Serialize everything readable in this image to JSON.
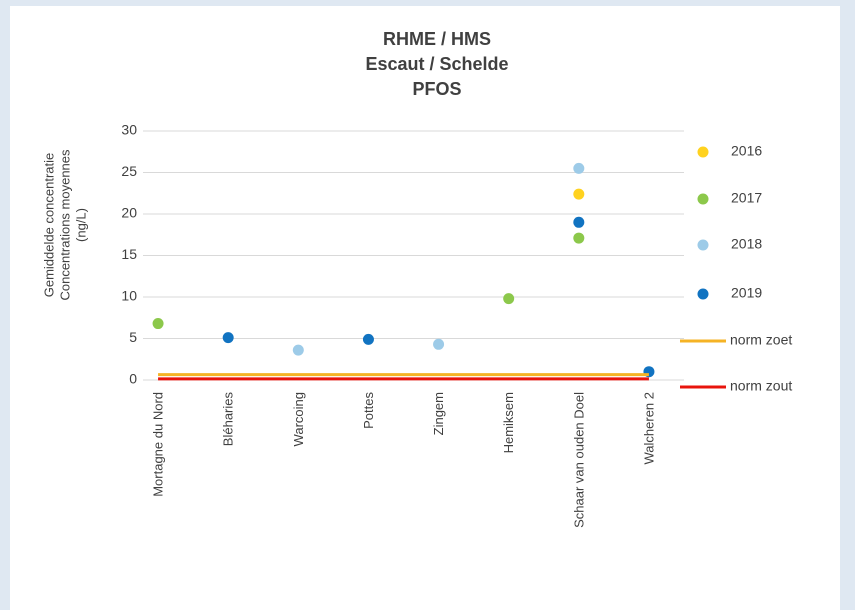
{
  "chart_data": {
    "type": "scatter",
    "title": [
      "RHME / HMS",
      "Escaut / Schelde",
      "PFOS"
    ],
    "ylabel": [
      "Gemiddelde concentratie",
      "Concentrations moyennes",
      "(ng/L)"
    ],
    "categories": [
      "Mortagne du Nord",
      "Bléharies",
      "Warcoing",
      "Pottes",
      "Zingem",
      "Hemiksem",
      "Schaar van ouden Doel",
      "Walcheren 2"
    ],
    "ylim": [
      0,
      30
    ],
    "yticks": [
      0,
      5,
      10,
      15,
      20,
      25,
      30
    ],
    "grid": true,
    "legend": "right",
    "series": [
      {
        "name": "2016",
        "color": "#ffd21f",
        "style": "marker",
        "values": [
          null,
          null,
          null,
          null,
          null,
          null,
          22.4,
          null
        ]
      },
      {
        "name": "2017",
        "color": "#8cc84b",
        "style": "marker",
        "values": [
          6.8,
          null,
          null,
          null,
          null,
          9.8,
          17.1,
          null
        ]
      },
      {
        "name": "2018",
        "color": "#9dcbe8",
        "style": "marker",
        "values": [
          null,
          null,
          3.6,
          null,
          4.3,
          null,
          25.5,
          null
        ]
      },
      {
        "name": "2019",
        "color": "#1173c1",
        "style": "marker",
        "values": [
          null,
          5.1,
          null,
          4.9,
          null,
          null,
          19.0,
          1.0
        ]
      },
      {
        "name": "norm zoet",
        "color": "#f5b325",
        "style": "line",
        "values": [
          0.65,
          0.65,
          0.65,
          0.65,
          0.65,
          0.65,
          0.65,
          0.65
        ]
      },
      {
        "name": "norm zout",
        "color": "#e8140c",
        "style": "line",
        "values": [
          0.13,
          0.13,
          0.13,
          0.13,
          0.13,
          0.13,
          0.13,
          0.13
        ]
      }
    ]
  }
}
